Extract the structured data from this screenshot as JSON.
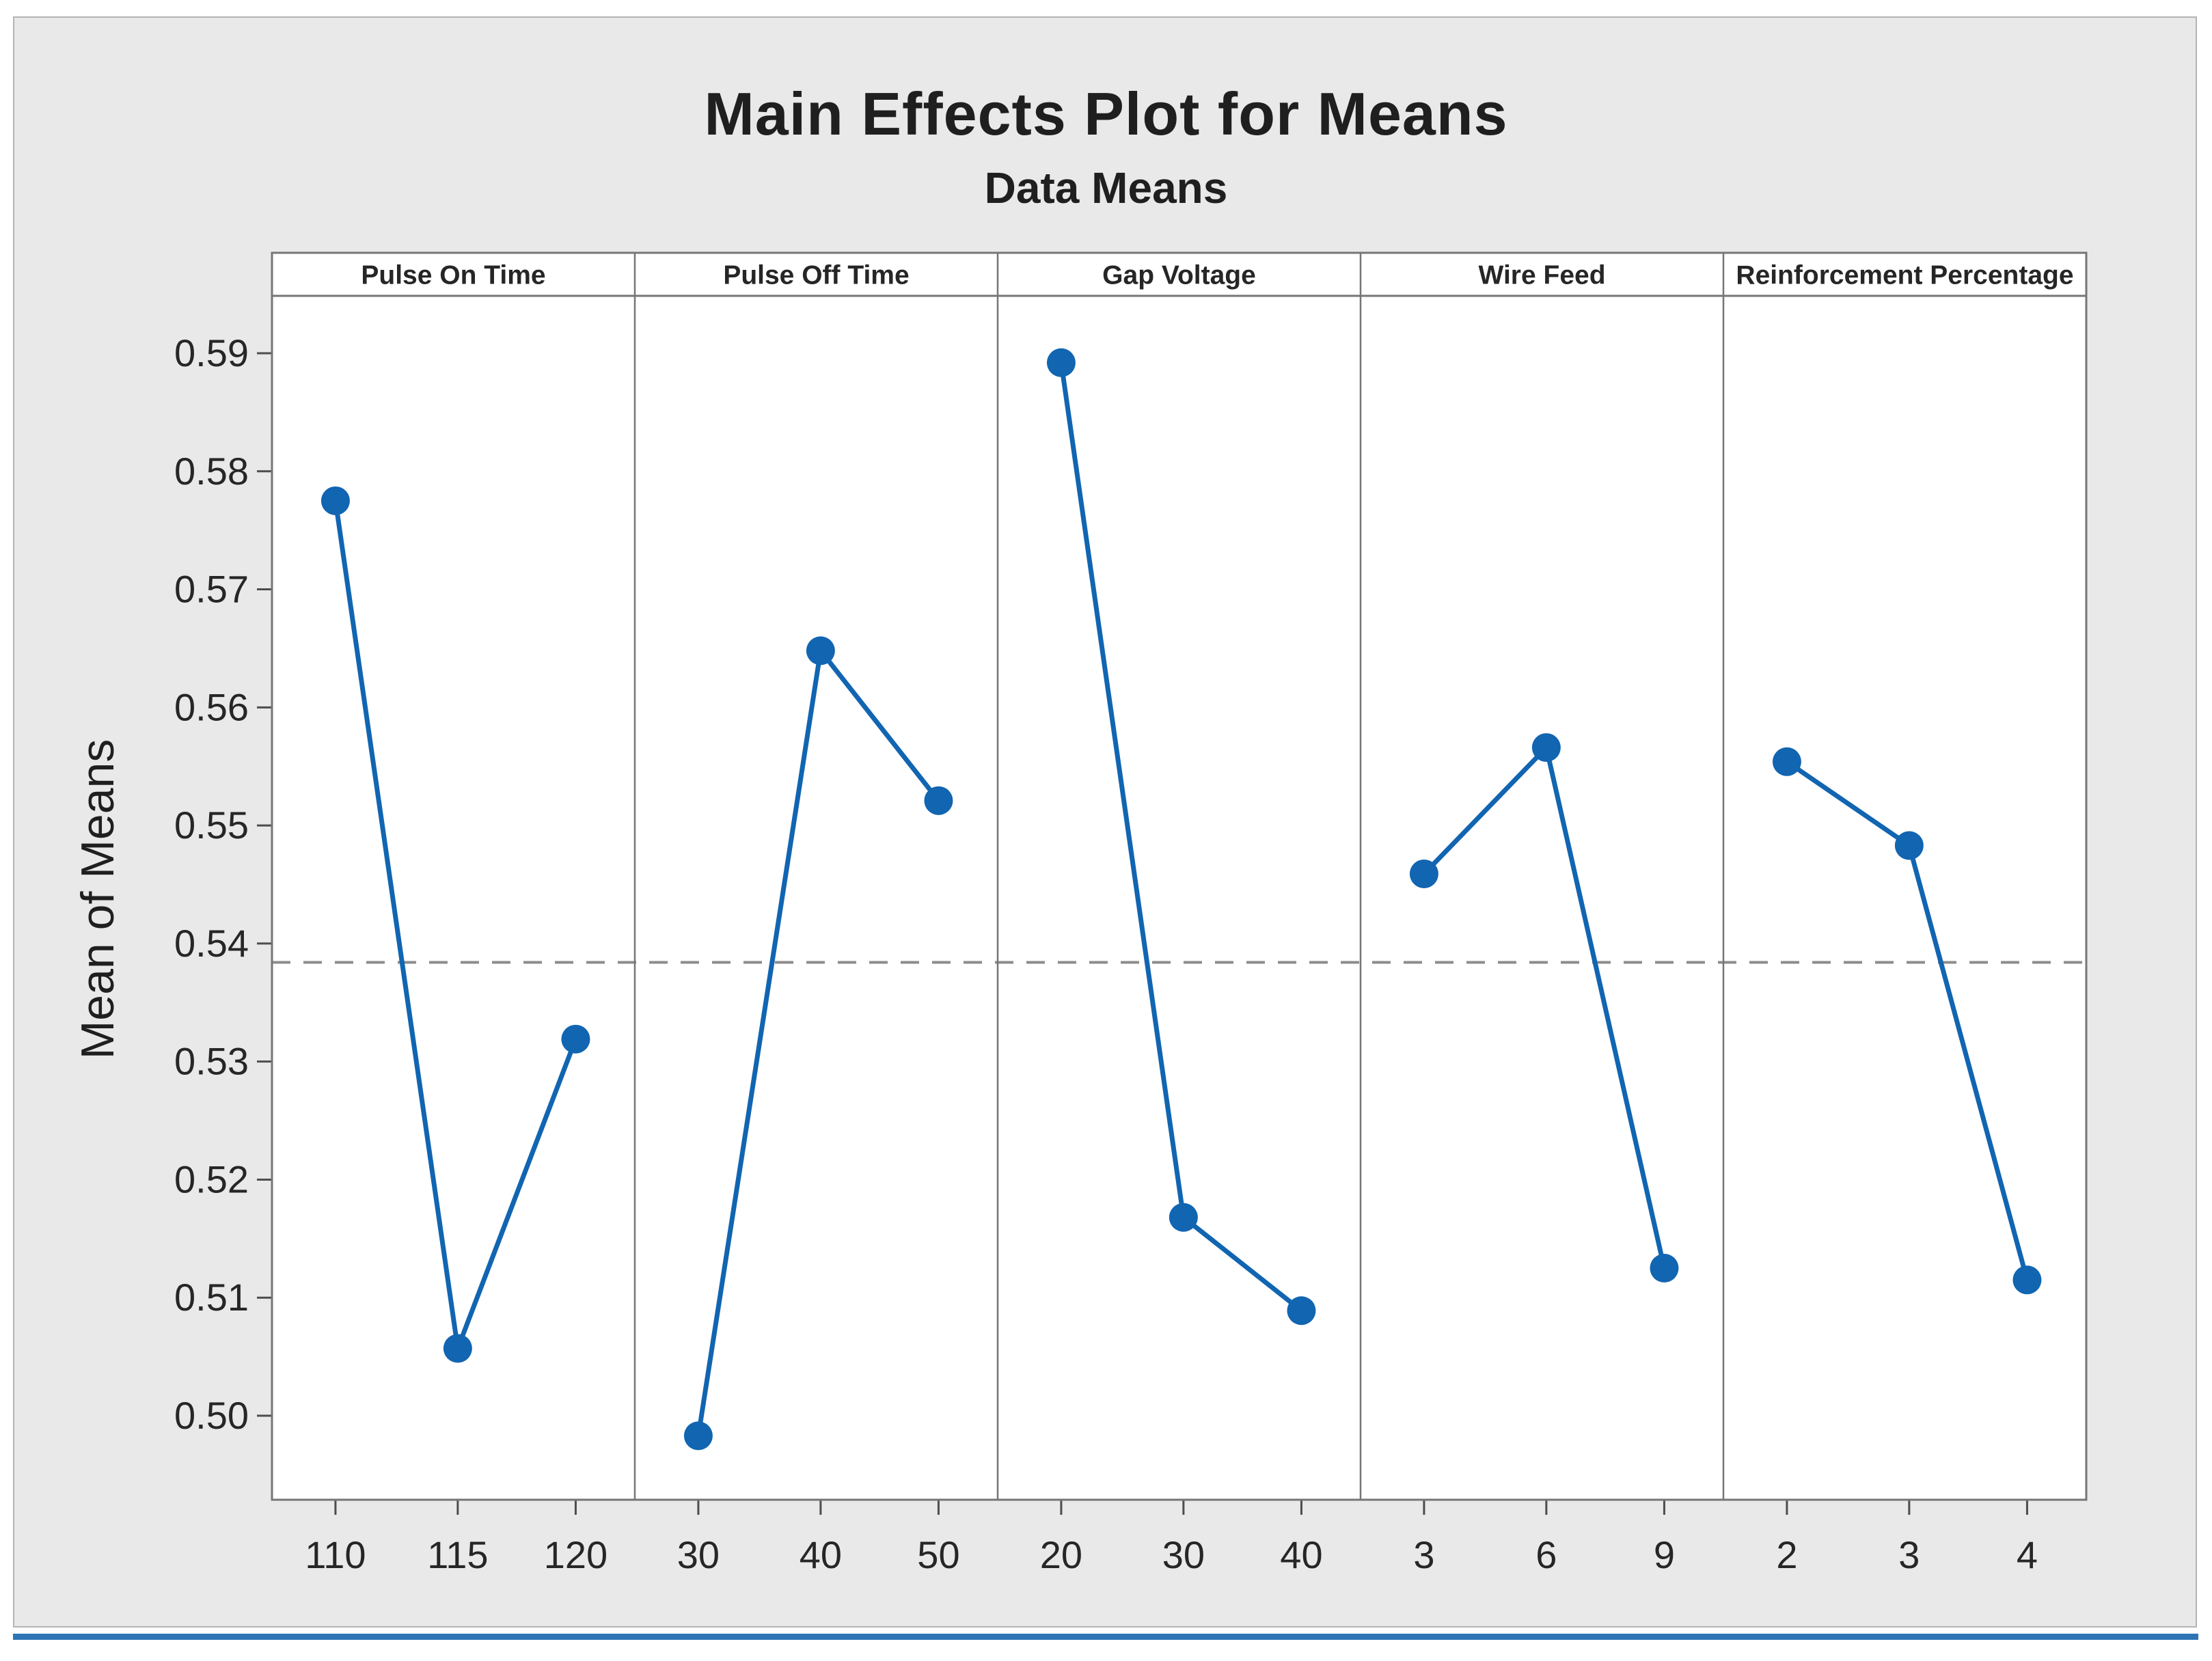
{
  "window": {
    "frame_bg": "#e9e9e9",
    "frame_border": "#b4b4b4",
    "bottom_bar_color": "#2e74b5"
  },
  "chart_data": {
    "type": "line",
    "title": "Main Effects Plot for Means",
    "subtitle": "Data Means",
    "ylabel": "Mean of Means",
    "xlabel": "",
    "legend": "none",
    "grid": false,
    "marker": "circle",
    "y_tick_labels": [
      "0.59",
      "0.58",
      "0.57",
      "0.56",
      "0.55",
      "0.54",
      "0.53",
      "0.52",
      "0.51",
      "0.50"
    ],
    "y_tick_values": [
      0.59,
      0.58,
      0.57,
      0.56,
      0.55,
      0.54,
      0.53,
      0.52,
      0.51,
      0.5
    ],
    "ylim": [
      0.4929,
      0.5952
    ],
    "reference_line": {
      "value": 0.5384,
      "style": "dashed"
    },
    "panels": [
      {
        "label": "Pulse On Time",
        "categories": [
          "110",
          "115",
          "120"
        ],
        "values": [
          0.5775,
          0.5057,
          0.5319
        ]
      },
      {
        "label": "Pulse Off Time",
        "categories": [
          "30",
          "40",
          "50"
        ],
        "values": [
          0.4983,
          0.5648,
          0.5521
        ]
      },
      {
        "label": "Gap Voltage",
        "categories": [
          "20",
          "30",
          "40"
        ],
        "values": [
          0.5892,
          0.5168,
          0.5089
        ]
      },
      {
        "label": "Wire Feed",
        "categories": [
          "3",
          "6",
          "9"
        ],
        "values": [
          0.5459,
          0.5566,
          0.5125
        ]
      },
      {
        "label": "Reinforcement Percentage",
        "categories": [
          "2",
          "3",
          "4"
        ],
        "values": [
          0.5554,
          0.5483,
          0.5115
        ]
      }
    ],
    "colors": {
      "series": "#1165b1",
      "reference_line": "#8c8c8c",
      "plot_background": "#ffffff",
      "panel_border": "#767676",
      "text": "#262626"
    }
  }
}
